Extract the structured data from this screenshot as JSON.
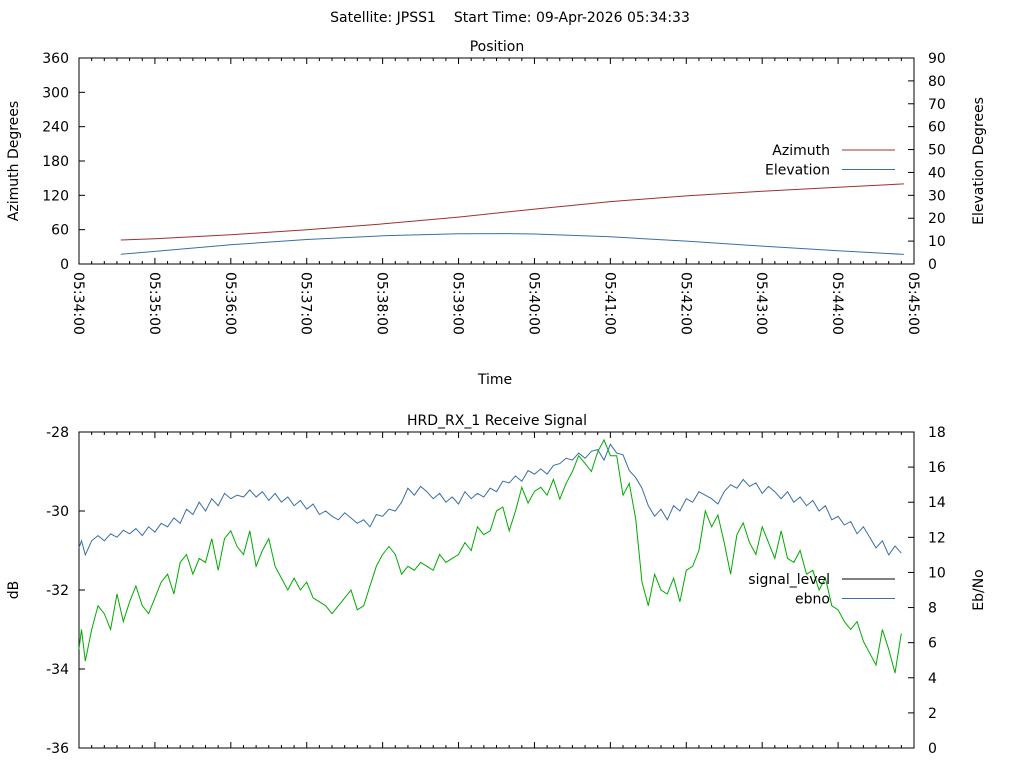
{
  "header": {
    "satellite_label": "Satellite: JPSS1",
    "start_time_label": "Start Time: 09-Apr-2026 05:34:33"
  },
  "chart_data": [
    {
      "type": "line",
      "title": "Position",
      "xlabel": "Time",
      "ylabel": "Azimuth Degrees",
      "y2label": "Elevation Degrees",
      "x_ticks": [
        "05:34:00",
        "05:35:00",
        "05:36:00",
        "05:37:00",
        "05:38:00",
        "05:39:00",
        "05:40:00",
        "05:41:00",
        "05:42:00",
        "05:43:00",
        "05:44:00",
        "05:45:00"
      ],
      "xlim_seconds": [
        0,
        660
      ],
      "ylim": [
        0,
        360
      ],
      "y_ticks": [
        0,
        60,
        120,
        180,
        240,
        300,
        360
      ],
      "y2lim": [
        0,
        90
      ],
      "y2_ticks": [
        0,
        10,
        20,
        30,
        40,
        50,
        60,
        70,
        80,
        90
      ],
      "legend_position": "right",
      "series": [
        {
          "name": "Azimuth",
          "axis": "y",
          "color": "#a0302f",
          "x_seconds": [
            33,
            60,
            120,
            180,
            240,
            300,
            360,
            420,
            480,
            540,
            600,
            652
          ],
          "values": [
            42,
            44,
            51,
            60,
            70,
            82,
            96,
            109,
            119,
            127,
            134,
            140
          ]
        },
        {
          "name": "Elevation",
          "axis": "y2",
          "color": "#3a6ea5",
          "x_seconds": [
            33,
            60,
            120,
            180,
            240,
            300,
            340,
            360,
            420,
            480,
            540,
            600,
            652
          ],
          "values": [
            4.3,
            5.5,
            8.4,
            10.7,
            12.3,
            13.2,
            13.3,
            13.1,
            11.9,
            10.0,
            7.8,
            5.8,
            4.2
          ]
        }
      ]
    },
    {
      "type": "line",
      "title": "HRD_RX_1 Receive Signal",
      "ylabel": "dB",
      "y2label": "Eb/No",
      "xlim_seconds": [
        0,
        660
      ],
      "ylim": [
        -36,
        -28
      ],
      "y_ticks": [
        -36,
        -34,
        -32,
        -30,
        -28
      ],
      "y2lim": [
        0,
        18
      ],
      "y2_ticks": [
        0,
        2,
        4,
        6,
        8,
        10,
        12,
        14,
        16,
        18
      ],
      "legend_position": "right",
      "series": [
        {
          "name": "signal_level",
          "axis": "y",
          "color": "#00aa00",
          "legend_swatch_color": "#000000",
          "x_seconds": [
            0,
            2,
            5,
            10,
            15,
            20,
            25,
            30,
            35,
            40,
            45,
            50,
            55,
            60,
            65,
            70,
            75,
            80,
            85,
            90,
            95,
            100,
            105,
            110,
            115,
            120,
            125,
            130,
            135,
            140,
            145,
            150,
            155,
            160,
            165,
            170,
            175,
            180,
            185,
            190,
            195,
            200,
            205,
            210,
            215,
            220,
            225,
            230,
            235,
            240,
            245,
            250,
            255,
            260,
            265,
            270,
            275,
            280,
            285,
            290,
            295,
            300,
            305,
            310,
            315,
            320,
            325,
            330,
            335,
            340,
            345,
            350,
            355,
            360,
            365,
            370,
            375,
            380,
            385,
            390,
            395,
            400,
            405,
            410,
            415,
            420,
            425,
            430,
            435,
            440,
            445,
            450,
            455,
            460,
            465,
            470,
            475,
            480,
            485,
            490,
            495,
            500,
            505,
            510,
            515,
            520,
            525,
            530,
            535,
            540,
            545,
            550,
            555,
            560,
            565,
            570,
            575,
            580,
            585,
            590,
            595,
            600,
            605,
            610,
            615,
            620,
            625,
            630,
            635,
            640,
            645,
            650
          ],
          "values": [
            -33.5,
            -33.0,
            -33.8,
            -33.0,
            -32.4,
            -32.6,
            -33.0,
            -32.1,
            -32.8,
            -32.3,
            -31.9,
            -32.4,
            -32.6,
            -32.2,
            -31.8,
            -31.6,
            -32.1,
            -31.3,
            -31.1,
            -31.6,
            -31.2,
            -31.3,
            -30.7,
            -31.5,
            -30.7,
            -30.5,
            -30.9,
            -31.1,
            -30.5,
            -31.4,
            -31.0,
            -30.7,
            -31.4,
            -31.7,
            -32.0,
            -31.7,
            -32.0,
            -31.8,
            -32.2,
            -32.3,
            -32.4,
            -32.6,
            -32.4,
            -32.2,
            -32.0,
            -32.5,
            -32.4,
            -31.9,
            -31.4,
            -31.1,
            -30.9,
            -31.1,
            -31.6,
            -31.4,
            -31.5,
            -31.3,
            -31.4,
            -31.5,
            -31.1,
            -31.3,
            -31.2,
            -31.1,
            -30.8,
            -31.0,
            -30.4,
            -30.6,
            -30.5,
            -30.0,
            -29.9,
            -30.5,
            -30.0,
            -29.4,
            -29.8,
            -29.5,
            -29.4,
            -29.6,
            -29.2,
            -29.7,
            -29.3,
            -29.0,
            -28.6,
            -28.8,
            -29.0,
            -28.5,
            -28.2,
            -28.6,
            -28.6,
            -29.6,
            -29.3,
            -30.2,
            -31.8,
            -32.4,
            -31.6,
            -32.0,
            -32.1,
            -31.7,
            -32.3,
            -31.5,
            -31.4,
            -31.0,
            -30.0,
            -30.4,
            -30.1,
            -30.8,
            -31.6,
            -30.6,
            -30.3,
            -30.8,
            -31.1,
            -30.4,
            -30.8,
            -31.2,
            -30.5,
            -31.2,
            -31.3,
            -31.0,
            -31.6,
            -31.5,
            -32.0,
            -31.7,
            -32.4,
            -32.5,
            -32.8,
            -33.0,
            -32.8,
            -33.3,
            -33.6,
            -33.9,
            -33.0,
            -33.5,
            -34.1,
            -33.1
          ]
        },
        {
          "name": "ebno",
          "axis": "y2",
          "color": "#3a6ea5",
          "x_seconds": [
            0,
            2,
            5,
            10,
            15,
            20,
            25,
            30,
            35,
            40,
            45,
            50,
            55,
            60,
            65,
            70,
            75,
            80,
            85,
            90,
            95,
            100,
            105,
            110,
            115,
            120,
            125,
            130,
            135,
            140,
            145,
            150,
            155,
            160,
            165,
            170,
            175,
            180,
            185,
            190,
            195,
            200,
            205,
            210,
            215,
            220,
            225,
            230,
            235,
            240,
            245,
            250,
            255,
            260,
            265,
            270,
            275,
            280,
            285,
            290,
            295,
            300,
            305,
            310,
            315,
            320,
            325,
            330,
            335,
            340,
            345,
            350,
            355,
            360,
            365,
            370,
            375,
            380,
            385,
            390,
            395,
            400,
            405,
            410,
            415,
            420,
            425,
            430,
            435,
            440,
            445,
            450,
            455,
            460,
            465,
            470,
            475,
            480,
            485,
            490,
            495,
            500,
            505,
            510,
            515,
            520,
            525,
            530,
            535,
            540,
            545,
            550,
            555,
            560,
            565,
            570,
            575,
            580,
            585,
            590,
            595,
            600,
            605,
            610,
            615,
            620,
            625,
            630,
            635,
            640,
            645,
            650
          ],
          "values": [
            11.4,
            11.8,
            11.0,
            11.8,
            12.1,
            11.8,
            12.2,
            12.0,
            12.4,
            12.2,
            12.5,
            12.1,
            12.6,
            12.3,
            12.8,
            12.6,
            13.1,
            12.8,
            13.6,
            13.3,
            14.0,
            13.5,
            14.2,
            13.8,
            14.5,
            14.2,
            14.4,
            14.3,
            14.7,
            14.3,
            14.6,
            14.1,
            14.5,
            14.0,
            14.3,
            13.8,
            14.1,
            13.6,
            13.9,
            13.3,
            13.5,
            13.2,
            13.0,
            13.4,
            13.1,
            12.8,
            13.0,
            12.6,
            13.3,
            13.2,
            13.6,
            13.5,
            14.0,
            14.8,
            14.4,
            14.9,
            14.6,
            14.2,
            14.5,
            14.0,
            14.3,
            13.9,
            14.6,
            14.2,
            14.5,
            14.3,
            14.8,
            14.6,
            15.2,
            15.1,
            15.5,
            15.2,
            15.8,
            15.6,
            15.9,
            15.6,
            16.1,
            16.2,
            16.5,
            16.4,
            16.8,
            16.5,
            16.9,
            17.0,
            16.4,
            17.3,
            16.8,
            16.7,
            15.8,
            15.4,
            14.8,
            13.8,
            13.2,
            13.6,
            13.0,
            13.8,
            13.5,
            14.2,
            14.0,
            14.6,
            14.4,
            14.2,
            13.9,
            14.6,
            15.0,
            14.8,
            15.3,
            14.9,
            15.1,
            14.5,
            14.9,
            14.6,
            14.2,
            14.6,
            14.0,
            14.3,
            13.8,
            14.1,
            13.5,
            13.8,
            13.0,
            13.2,
            12.7,
            12.9,
            12.2,
            12.6,
            12.0,
            11.4,
            11.8,
            11.0,
            11.5,
            11.1
          ]
        }
      ]
    }
  ]
}
